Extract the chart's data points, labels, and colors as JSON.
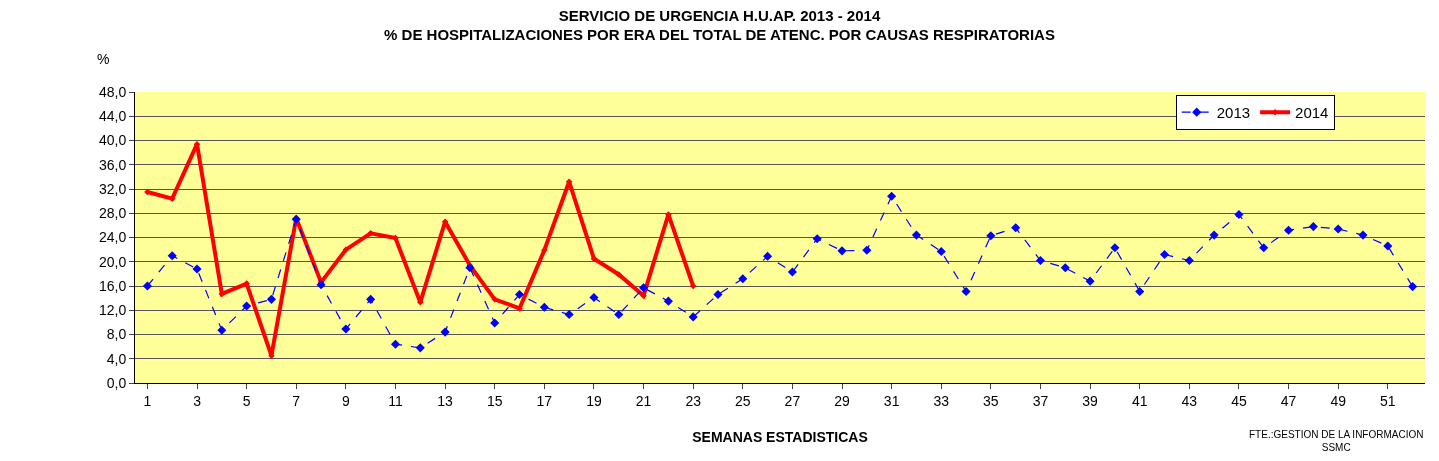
{
  "chart_data": {
    "type": "line",
    "title": "SERVICIO DE URGENCIA H.U.AP. 2013 - 2014\n% DE HOSPITALIZACIONES POR ERA DEL TOTAL DE ATENC. POR CAUSAS RESPIRATORIAS",
    "xlabel": "SEMANAS ESTADISTICAS",
    "ylabel": "%",
    "annotations": [
      "FTE.:GESTION DE LA INFORMACION\nSSMC"
    ],
    "x": [
      1,
      2,
      3,
      4,
      5,
      6,
      7,
      8,
      9,
      10,
      11,
      12,
      13,
      14,
      15,
      16,
      17,
      18,
      19,
      20,
      21,
      22,
      23,
      24,
      25,
      26,
      27,
      28,
      29,
      30,
      31,
      32,
      33,
      34,
      35,
      36,
      37,
      38,
      39,
      40,
      41,
      42,
      43,
      44,
      45,
      46,
      47,
      48,
      49,
      50,
      51,
      52
    ],
    "xlim": [
      0.5,
      52.5
    ],
    "xticks": [
      1,
      3,
      5,
      7,
      9,
      11,
      13,
      15,
      17,
      19,
      21,
      23,
      25,
      27,
      29,
      31,
      33,
      35,
      37,
      39,
      41,
      43,
      45,
      47,
      49,
      51
    ],
    "series": [
      {
        "name": "2013",
        "color": "#0000ff",
        "line_style": "dashed",
        "marker": "diamond",
        "values": [
          16.0,
          21.0,
          18.8,
          8.7,
          12.7,
          13.8,
          27.0,
          16.2,
          8.9,
          13.8,
          6.4,
          5.8,
          8.4,
          19.0,
          9.9,
          14.6,
          12.5,
          11.3,
          14.1,
          11.3,
          15.7,
          13.5,
          10.9,
          14.6,
          17.2,
          20.9,
          18.3,
          23.8,
          21.8,
          21.9,
          30.8,
          24.4,
          21.7,
          15.1,
          24.3,
          25.6,
          20.2,
          19.0,
          16.8,
          22.3,
          15.1,
          21.2,
          20.2,
          24.4,
          27.8,
          22.3,
          25.2,
          25.8,
          25.4,
          24.4,
          22.6,
          15.9
        ]
      },
      {
        "name": "2014",
        "color": "#ff0000",
        "line_style": "solid",
        "marker": "diamond",
        "values": [
          31.5,
          30.4,
          39.4,
          14.7,
          16.4,
          4.5,
          27.2,
          16.6,
          22.0,
          24.7,
          23.9,
          13.3,
          26.6,
          19.4,
          13.8,
          12.3,
          21.9,
          33.2,
          20.5,
          17.9,
          14.4,
          27.8,
          16.0,
          null,
          null,
          null,
          null,
          null,
          null,
          null,
          null,
          null,
          null,
          null,
          null,
          null,
          null,
          null,
          null,
          null,
          null,
          null,
          null,
          null,
          null,
          null,
          null,
          null,
          null,
          null,
          null,
          null
        ]
      }
    ],
    "ylim": [
      0,
      48
    ],
    "yticks": [
      {
        "value": 0,
        "label": "0,0"
      },
      {
        "value": 4,
        "label": "4,0"
      },
      {
        "value": 8,
        "label": "8,0"
      },
      {
        "value": 12,
        "label": "12,0"
      },
      {
        "value": 16,
        "label": "16,0"
      },
      {
        "value": 20,
        "label": "20,0"
      },
      {
        "value": 24,
        "label": "24,0"
      },
      {
        "value": 28,
        "label": "28,0"
      },
      {
        "value": 32,
        "label": "32,0"
      },
      {
        "value": 36,
        "label": "36,0"
      },
      {
        "value": 40,
        "label": "40,0"
      },
      {
        "value": 44,
        "label": "44,0"
      },
      {
        "value": 48,
        "label": "48,0"
      }
    ],
    "grid": "y",
    "legend": "top right"
  }
}
